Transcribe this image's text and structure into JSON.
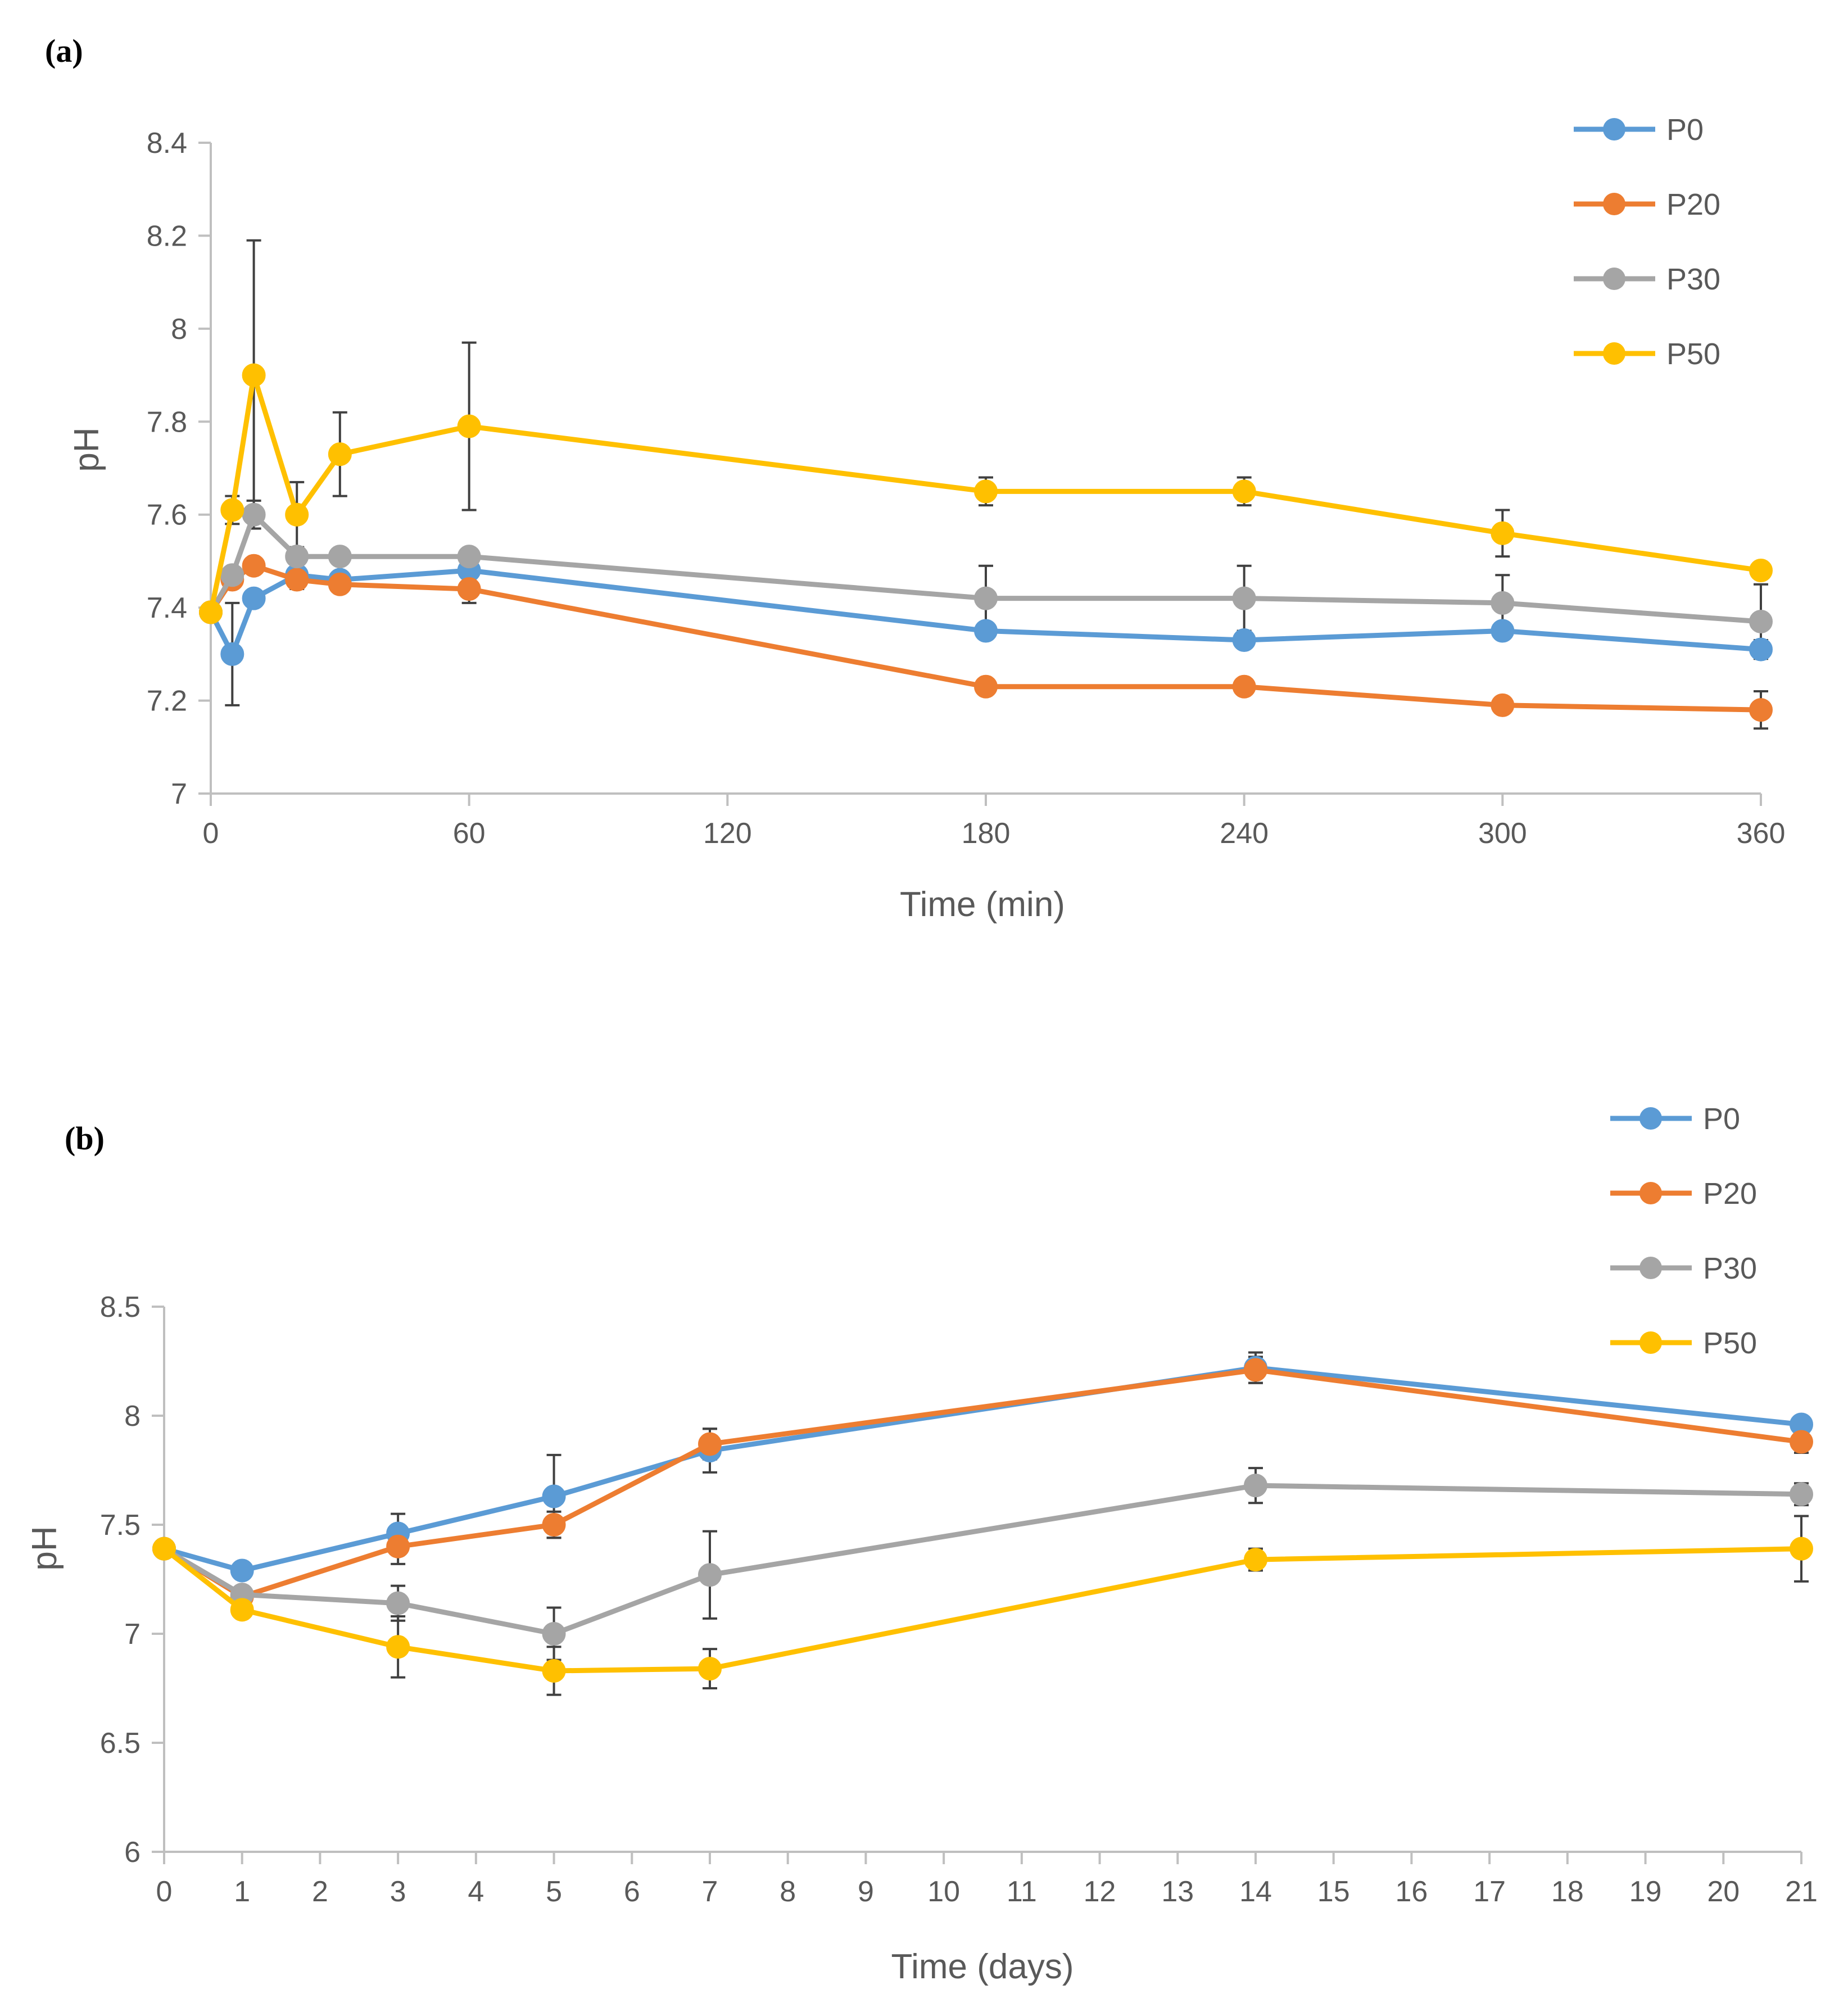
{
  "chart_data": [
    {
      "type": "line",
      "panel_label": "(a)",
      "xlabel": "Time (min)",
      "ylabel": "pH",
      "xlim": [
        0,
        360
      ],
      "ylim": [
        7,
        8.4
      ],
      "xticks": [
        0,
        60,
        120,
        180,
        240,
        300,
        360
      ],
      "yticks": [
        7,
        7.2,
        7.4,
        7.6,
        7.8,
        8,
        8.2,
        8.4
      ],
      "ytick_labels": [
        "7",
        "7.2",
        "7.4",
        "7.6",
        "7.8",
        "8",
        "8.2",
        "8.4"
      ],
      "legend_position": "top-right",
      "series": [
        {
          "name": "P0",
          "color": "#5B9BD5",
          "x": [
            0,
            5,
            10,
            20,
            30,
            60,
            180,
            240,
            300,
            360
          ],
          "y": [
            7.39,
            7.3,
            7.42,
            7.47,
            7.46,
            7.48,
            7.35,
            7.33,
            7.35,
            7.31
          ],
          "err": [
            0,
            0.11,
            0,
            0,
            0,
            0,
            0,
            0,
            0,
            0.02
          ]
        },
        {
          "name": "P20",
          "color": "#ED7D31",
          "x": [
            0,
            5,
            10,
            20,
            30,
            60,
            180,
            240,
            300,
            360
          ],
          "y": [
            7.39,
            7.46,
            7.49,
            7.46,
            7.45,
            7.44,
            7.23,
            7.23,
            7.19,
            7.18
          ],
          "err": [
            0,
            0,
            0,
            0.02,
            0,
            0.03,
            0,
            0,
            0,
            0.04
          ]
        },
        {
          "name": "P30",
          "color": "#A5A5A5",
          "x": [
            0,
            5,
            10,
            20,
            30,
            60,
            180,
            240,
            300,
            360
          ],
          "y": [
            7.39,
            7.47,
            7.6,
            7.51,
            7.51,
            7.51,
            7.42,
            7.42,
            7.41,
            7.37
          ],
          "err": [
            0,
            0,
            0.03,
            0,
            0,
            0,
            0.07,
            0.07,
            0.06,
            0.08
          ]
        },
        {
          "name": "P50",
          "color": "#FFC000",
          "x": [
            0,
            5,
            10,
            20,
            30,
            60,
            180,
            240,
            300,
            360
          ],
          "y": [
            7.39,
            7.61,
            7.9,
            7.6,
            7.73,
            7.79,
            7.65,
            7.65,
            7.56,
            7.48
          ],
          "err": [
            0,
            0.03,
            0.29,
            0.07,
            0.09,
            0.18,
            0.03,
            0.03,
            0.05,
            0
          ]
        }
      ]
    },
    {
      "type": "line",
      "panel_label": "(b)",
      "xlabel": "Time (days)",
      "ylabel": "pH",
      "xlim": [
        0,
        21
      ],
      "ylim": [
        6,
        8.5
      ],
      "xticks": [
        0,
        1,
        2,
        3,
        4,
        5,
        6,
        7,
        8,
        9,
        10,
        11,
        12,
        13,
        14,
        15,
        16,
        17,
        18,
        19,
        20,
        21
      ],
      "yticks": [
        6,
        6.5,
        7,
        7.5,
        8,
        8.5
      ],
      "ytick_labels": [
        "6",
        "6.5",
        "7",
        "7.5",
        "8",
        "8.5"
      ],
      "legend_position": "top-right",
      "series": [
        {
          "name": "P0",
          "color": "#5B9BD5",
          "x": [
            0,
            1,
            3,
            5,
            7,
            14,
            21
          ],
          "y": [
            7.39,
            7.29,
            7.46,
            7.63,
            7.84,
            8.22,
            7.96
          ],
          "err": [
            0,
            0,
            0.09,
            0.19,
            0.1,
            0.07,
            0
          ]
        },
        {
          "name": "P20",
          "color": "#ED7D31",
          "x": [
            0,
            1,
            3,
            5,
            7,
            14,
            21
          ],
          "y": [
            7.39,
            7.17,
            7.4,
            7.5,
            7.87,
            8.21,
            7.88
          ],
          "err": [
            0,
            0,
            0.08,
            0.06,
            0.07,
            0.06,
            0.05
          ]
        },
        {
          "name": "P30",
          "color": "#A5A5A5",
          "x": [
            0,
            1,
            3,
            5,
            7,
            14,
            21
          ],
          "y": [
            7.39,
            7.18,
            7.14,
            7.0,
            7.27,
            7.68,
            7.64
          ],
          "err": [
            0,
            0,
            0.08,
            0.12,
            0.2,
            0.08,
            0.05
          ]
        },
        {
          "name": "P50",
          "color": "#FFC000",
          "x": [
            0,
            1,
            3,
            5,
            7,
            14,
            21
          ],
          "y": [
            7.39,
            7.11,
            6.94,
            6.83,
            6.84,
            7.34,
            7.39
          ],
          "err": [
            0,
            0,
            0.14,
            0.11,
            0.09,
            0.05,
            0.15
          ]
        }
      ]
    }
  ]
}
